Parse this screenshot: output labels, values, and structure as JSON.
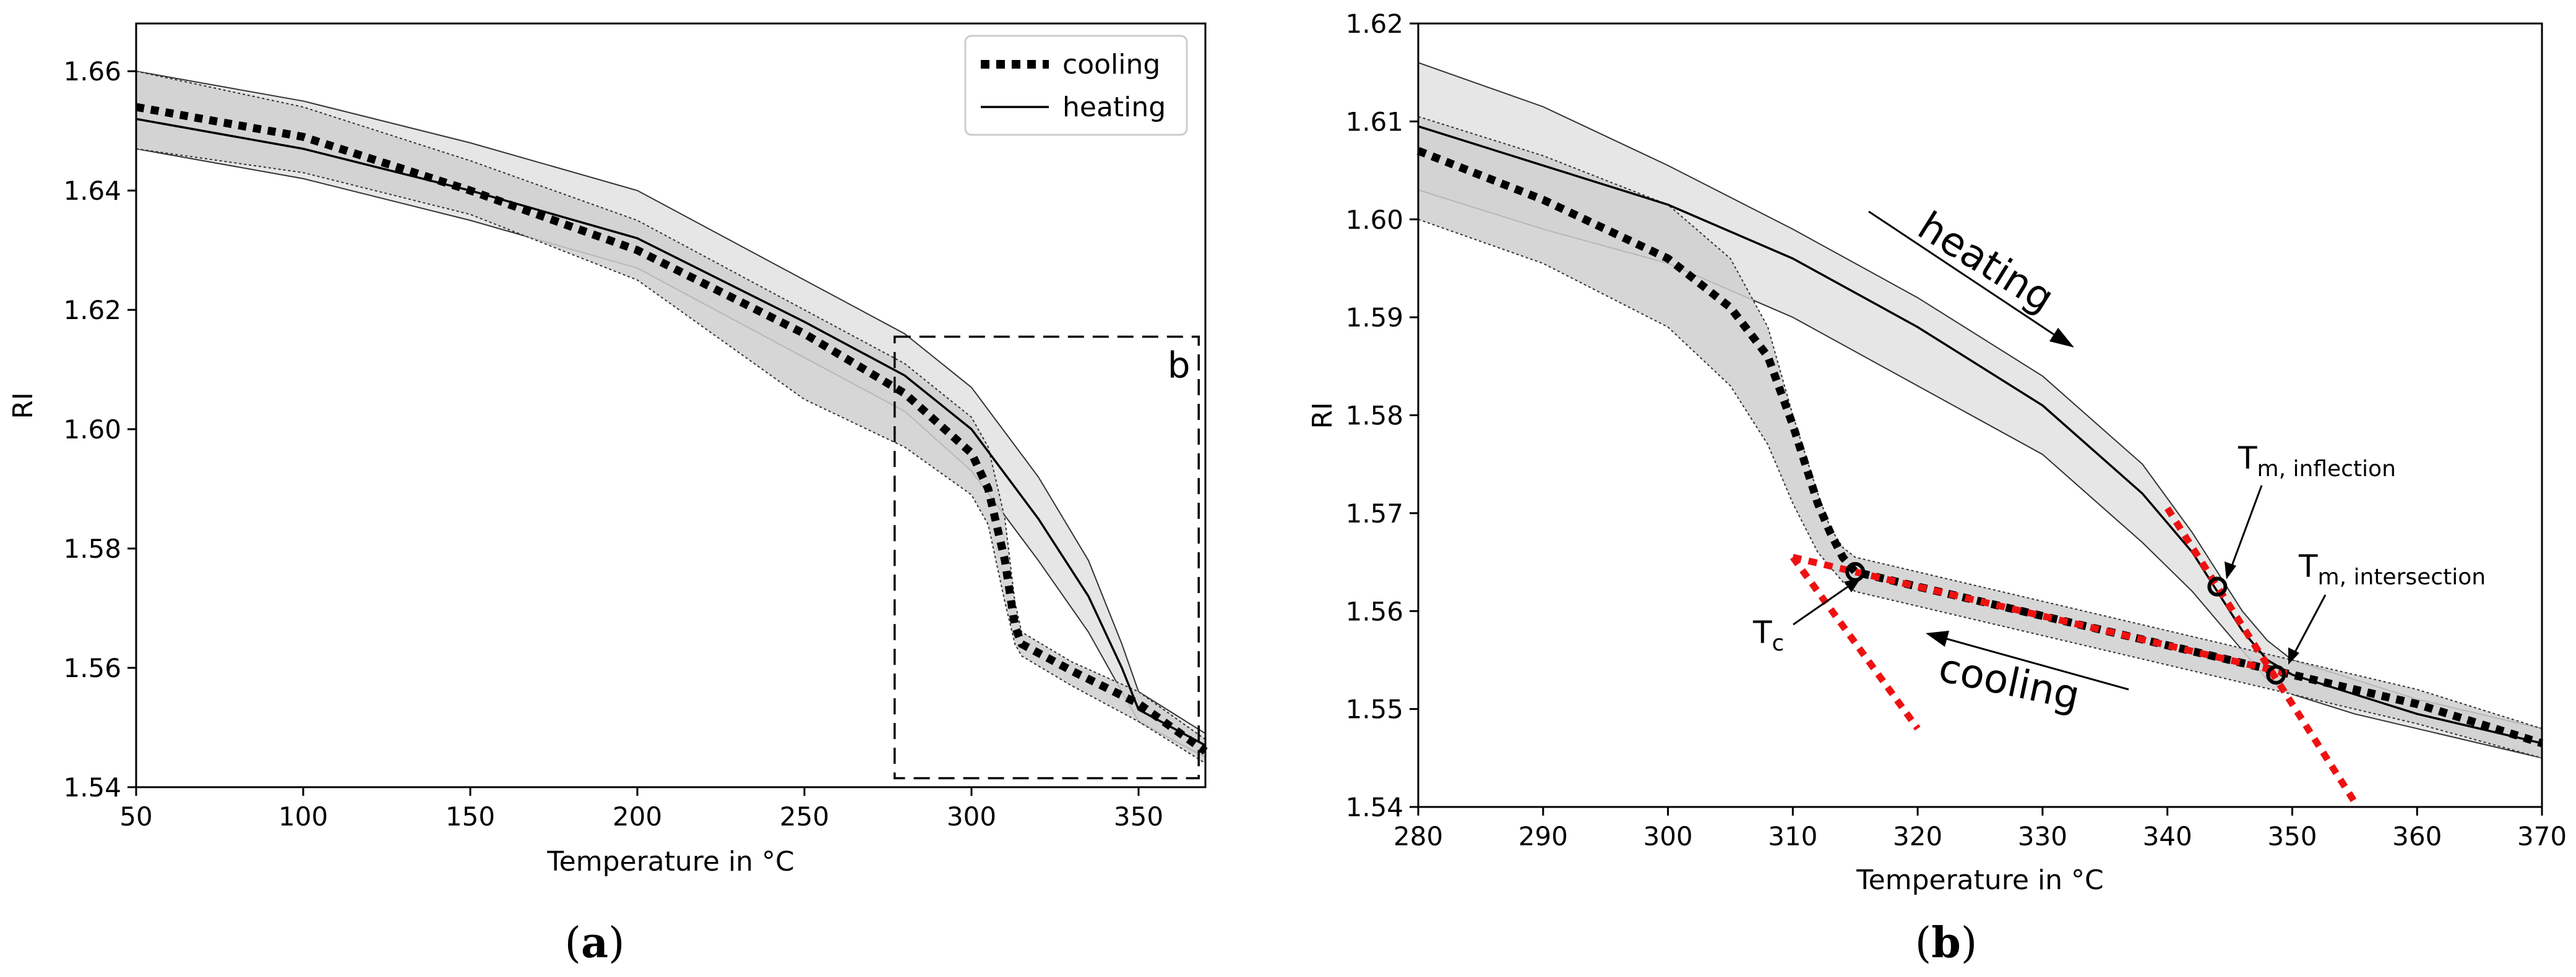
{
  "chart_data": [
    {
      "panel": "a",
      "type": "line",
      "caption_letter": "a",
      "xlabel": "Temperature in °C",
      "ylabel": "RI",
      "xlim": [
        50,
        370
      ],
      "ylim": [
        1.54,
        1.668
      ],
      "xticks": [
        "50",
        "100",
        "150",
        "200",
        "250",
        "300",
        "350"
      ],
      "yticks": [
        "1.54",
        "1.56",
        "1.58",
        "1.60",
        "1.62",
        "1.64",
        "1.66"
      ],
      "legend": {
        "position": "top-right",
        "entries": [
          "cooling",
          "heating"
        ]
      },
      "zoom_box": {
        "label": "b",
        "x_range": [
          277,
          368
        ],
        "y_range": [
          1.5415,
          1.6155
        ]
      },
      "series": [
        {
          "name": "heating",
          "style": "solid",
          "x": [
            50,
            100,
            150,
            200,
            250,
            280,
            300,
            320,
            335,
            345,
            350,
            370
          ],
          "y": [
            1.652,
            1.647,
            1.64,
            1.632,
            1.618,
            1.609,
            1.6,
            1.585,
            1.572,
            1.56,
            1.553,
            1.547
          ],
          "band_upper": [
            1.66,
            1.655,
            1.648,
            1.64,
            1.625,
            1.616,
            1.607,
            1.592,
            1.578,
            1.564,
            1.556,
            1.549
          ],
          "band_lower": [
            1.647,
            1.642,
            1.635,
            1.627,
            1.612,
            1.603,
            1.593,
            1.578,
            1.566,
            1.556,
            1.551,
            1.545
          ]
        },
        {
          "name": "cooling",
          "style": "dotted",
          "x": [
            50,
            100,
            150,
            200,
            250,
            280,
            300,
            305,
            310,
            313,
            315,
            330,
            350,
            370
          ],
          "y": [
            1.654,
            1.649,
            1.64,
            1.63,
            1.616,
            1.606,
            1.596,
            1.59,
            1.578,
            1.567,
            1.564,
            1.5595,
            1.554,
            1.546
          ],
          "band_upper": [
            1.66,
            1.654,
            1.645,
            1.635,
            1.62,
            1.611,
            1.602,
            1.597,
            1.585,
            1.571,
            1.566,
            1.561,
            1.556,
            1.548
          ],
          "band_lower": [
            1.647,
            1.643,
            1.636,
            1.625,
            1.605,
            1.597,
            1.589,
            1.584,
            1.571,
            1.564,
            1.562,
            1.557,
            1.551,
            1.544
          ]
        }
      ]
    },
    {
      "panel": "b",
      "type": "line",
      "caption_letter": "b",
      "xlabel": "Temperature in °C",
      "ylabel": "RI",
      "xlim": [
        280,
        370
      ],
      "ylim": [
        1.54,
        1.62
      ],
      "xticks": [
        "280",
        "290",
        "300",
        "310",
        "320",
        "330",
        "340",
        "350",
        "360",
        "370"
      ],
      "yticks": [
        "1.54",
        "1.55",
        "1.56",
        "1.57",
        "1.58",
        "1.59",
        "1.60",
        "1.61",
        "1.62"
      ],
      "series": [
        {
          "name": "heating",
          "style": "solid",
          "x": [
            280,
            290,
            300,
            310,
            320,
            330,
            338,
            342,
            344,
            346,
            348,
            350,
            355,
            360,
            370
          ],
          "y": [
            1.6095,
            1.6055,
            1.6015,
            1.596,
            1.589,
            1.581,
            1.572,
            1.566,
            1.562,
            1.558,
            1.555,
            1.5535,
            1.5515,
            1.5495,
            1.5465
          ],
          "band_upper": [
            1.616,
            1.6115,
            1.6055,
            1.599,
            1.592,
            1.584,
            1.575,
            1.568,
            1.564,
            1.56,
            1.557,
            1.555,
            1.553,
            1.551,
            1.548
          ],
          "band_lower": [
            1.603,
            1.599,
            1.5955,
            1.59,
            1.583,
            1.576,
            1.567,
            1.562,
            1.559,
            1.556,
            1.553,
            1.5515,
            1.5495,
            1.548,
            1.545
          ]
        },
        {
          "name": "cooling",
          "style": "dotted",
          "x": [
            280,
            290,
            300,
            305,
            308,
            310,
            312,
            313,
            314,
            315,
            320,
            330,
            340,
            350,
            360,
            370
          ],
          "y": [
            1.607,
            1.602,
            1.596,
            1.591,
            1.586,
            1.579,
            1.571,
            1.568,
            1.5655,
            1.564,
            1.5625,
            1.5595,
            1.5565,
            1.5535,
            1.5505,
            1.5465
          ],
          "band_upper": [
            1.6105,
            1.6065,
            1.6015,
            1.596,
            1.589,
            1.58,
            1.572,
            1.5685,
            1.5665,
            1.5655,
            1.564,
            1.561,
            1.558,
            1.555,
            1.552,
            1.548
          ],
          "band_lower": [
            1.6,
            1.5955,
            1.589,
            1.583,
            1.577,
            1.571,
            1.566,
            1.5645,
            1.563,
            1.562,
            1.5605,
            1.5575,
            1.5545,
            1.5515,
            1.5485,
            1.545
          ]
        }
      ],
      "tangent_lines": [
        {
          "x": [
            310,
            320
          ],
          "y": [
            1.5655,
            1.548
          ]
        },
        {
          "x": [
            310,
            350
          ],
          "y": [
            1.5655,
            1.5535
          ]
        },
        {
          "x": [
            340,
            355
          ],
          "y": [
            1.5705,
            1.5405
          ]
        }
      ],
      "markers": [
        {
          "name": "Tc",
          "x": 315,
          "y": 1.564
        },
        {
          "name": "Tm_inflection",
          "x": 344,
          "y": 1.5625
        },
        {
          "name": "Tm_intersection",
          "x": 348.7,
          "y": 1.5535
        }
      ],
      "annotations": {
        "heating_label": "heating",
        "cooling_label": "cooling",
        "tc_main": "T",
        "tc_sub": "c",
        "tm_inflection_main": "T",
        "tm_inflection_sub": "m, inflection",
        "tm_intersection_main": "T",
        "tm_intersection_sub": "m, intersection"
      }
    }
  ],
  "colors": {
    "band_fill": "#cfcfcf",
    "band_fill_light": "#e2e2e2",
    "tangent": "#ee1111",
    "line": "#000000"
  }
}
